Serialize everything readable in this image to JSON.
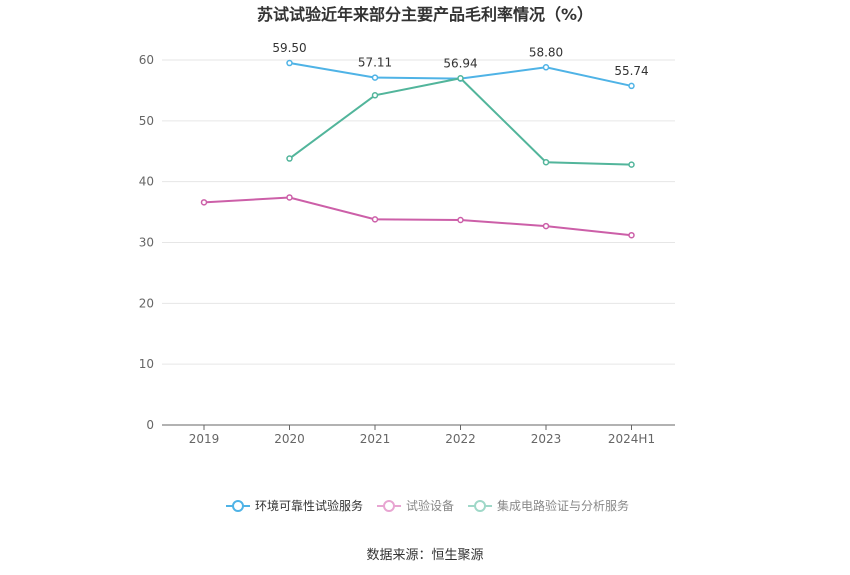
{
  "chart_data": {
    "type": "line",
    "title": "苏试试验近年来部分主要产品毛利率情况（%）",
    "xlabel": "",
    "ylabel": "",
    "categories": [
      "2019",
      "2020",
      "2021",
      "2022",
      "2023",
      "2024H1"
    ],
    "ylim": [
      0,
      60
    ],
    "yticks": [
      0,
      10,
      20,
      30,
      40,
      50,
      60
    ],
    "grid": true,
    "legend_position": "bottom",
    "series": [
      {
        "name": "环境可靠性试验服务",
        "color": "#4fb3e6",
        "values": [
          null,
          59.5,
          57.11,
          56.94,
          58.8,
          55.74
        ],
        "labels": [
          "",
          "59.50",
          "57.11",
          "56.94",
          "58.80",
          "55.74"
        ]
      },
      {
        "name": "试验设备",
        "color": "#cc5fa8",
        "values": [
          36.6,
          37.4,
          33.8,
          33.7,
          32.7,
          31.2
        ],
        "labels": [
          "",
          "",
          "",
          "",
          "",
          ""
        ]
      },
      {
        "name": "集成电路验证与分析服务",
        "color": "#52b59b",
        "values": [
          null,
          43.8,
          54.2,
          57.0,
          43.2,
          42.8
        ],
        "labels": [
          "",
          "",
          "",
          "",
          "",
          ""
        ]
      }
    ]
  },
  "source": "数据来源：恒生聚源"
}
